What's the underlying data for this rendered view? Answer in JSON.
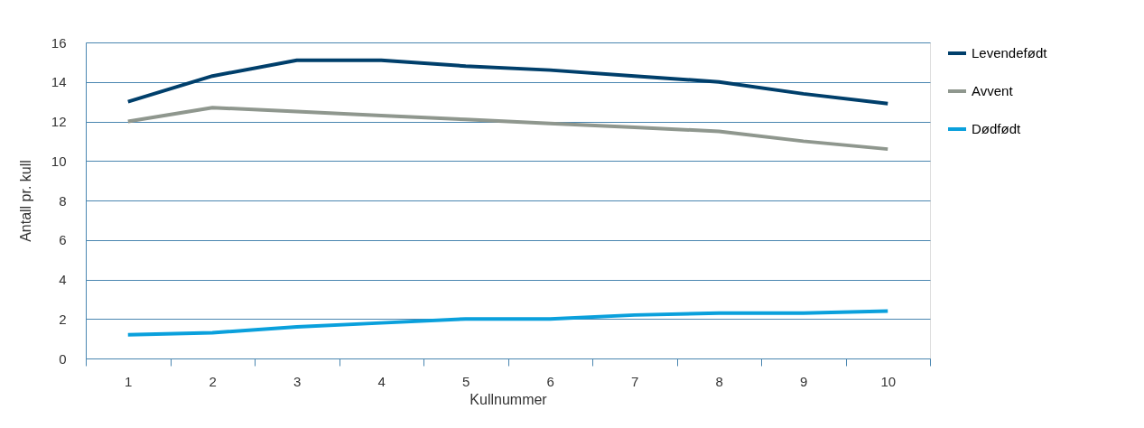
{
  "chart_data": {
    "type": "line",
    "xlabel": "Kullnummer",
    "ylabel": "Antall pr. kull",
    "categories": [
      "1",
      "2",
      "3",
      "4",
      "5",
      "6",
      "7",
      "8",
      "9",
      "10"
    ],
    "series": [
      {
        "name": "Levendefødt",
        "color": "#003f6b",
        "values": [
          13.0,
          14.3,
          15.1,
          15.1,
          14.8,
          14.6,
          14.3,
          14.0,
          13.4,
          12.9
        ]
      },
      {
        "name": "Avvent",
        "color": "#8f978e",
        "values": [
          12.0,
          12.7,
          12.5,
          12.3,
          12.1,
          11.9,
          11.7,
          11.5,
          11.0,
          10.6
        ]
      },
      {
        "name": "Dødfødt",
        "color": "#0aa0dc",
        "values": [
          1.2,
          1.3,
          1.6,
          1.8,
          2.0,
          2.0,
          2.2,
          2.3,
          2.3,
          2.4
        ]
      }
    ],
    "ylim": [
      0,
      16
    ],
    "yticks": [
      0,
      2,
      4,
      6,
      8,
      10,
      12,
      14,
      16
    ],
    "grid": "y",
    "legend": "right",
    "marker": "none",
    "line_style": "solid"
  }
}
